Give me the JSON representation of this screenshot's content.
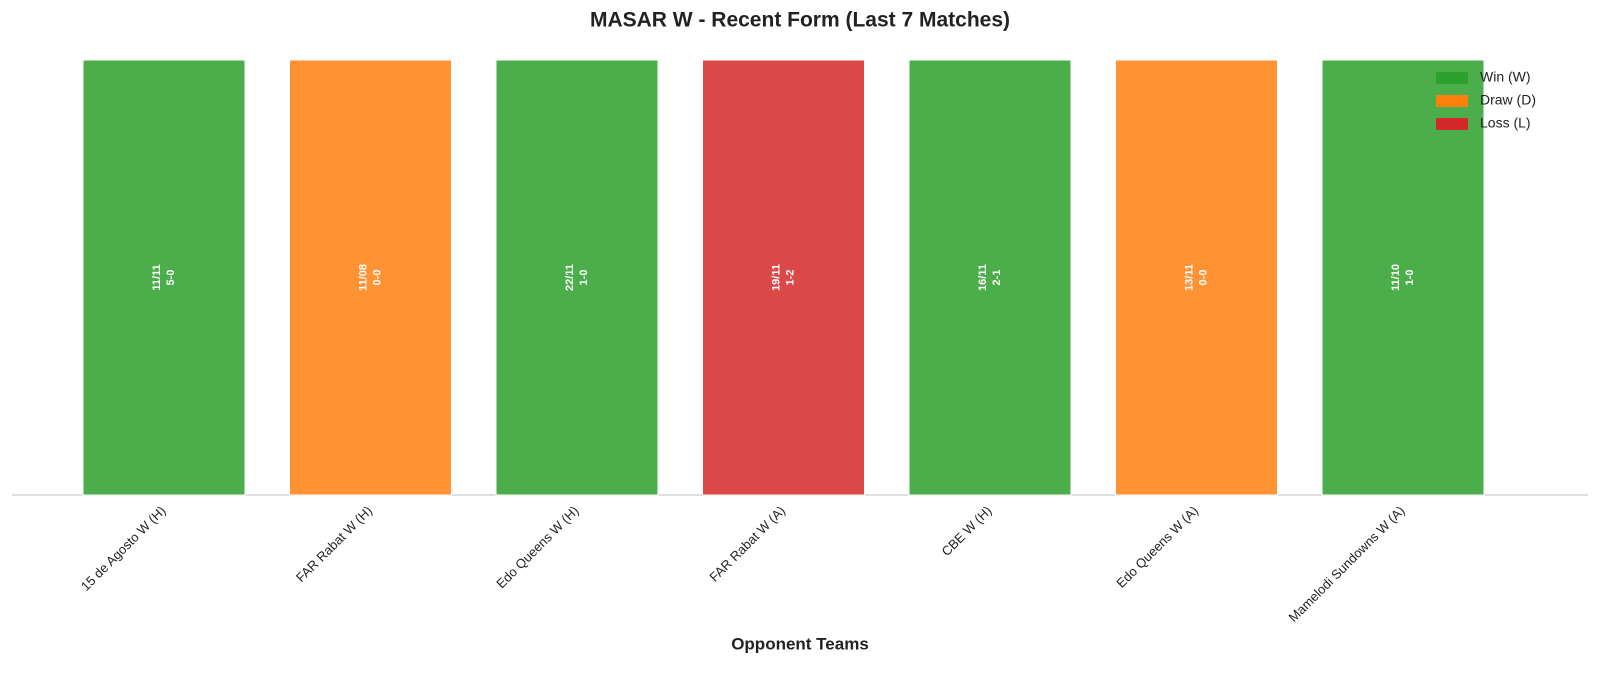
{
  "chart_data": {
    "type": "bar",
    "title": "MASAR W - Recent Form (Last 7 Matches)",
    "x_label": "Opponent Teams",
    "categories": [
      "15 de Agosto W (H)",
      "FAR Rabat W (H)",
      "Edo Queens W (H)",
      "FAR Rabat W (A)",
      "CBE W (H)",
      "Edo Queens W (A)",
      "Mamelodi Sundowns W (A)"
    ],
    "dates": [
      "11/11",
      "11/08",
      "22/11",
      "19/11",
      "16/11",
      "13/11",
      "11/10"
    ],
    "scores": [
      "5-0",
      "0-0",
      "1-0",
      "1-2",
      "2-1",
      "0-0",
      "1-0"
    ],
    "series": [
      {
        "name": "Win (W)",
        "color": "#2ca02c",
        "values": [
          1,
          null,
          1,
          null,
          1,
          null,
          1
        ]
      },
      {
        "name": "Draw (D)",
        "color": "#ff7f0e",
        "values": [
          null,
          1,
          null,
          null,
          null,
          1,
          null
        ]
      },
      {
        "name": "Loss (L)",
        "color": "#d62728",
        "values": [
          null,
          null,
          null,
          1,
          null,
          null,
          null
        ]
      }
    ],
    "ylim": [
      0,
      1.05
    ],
    "legend": "upper right"
  }
}
